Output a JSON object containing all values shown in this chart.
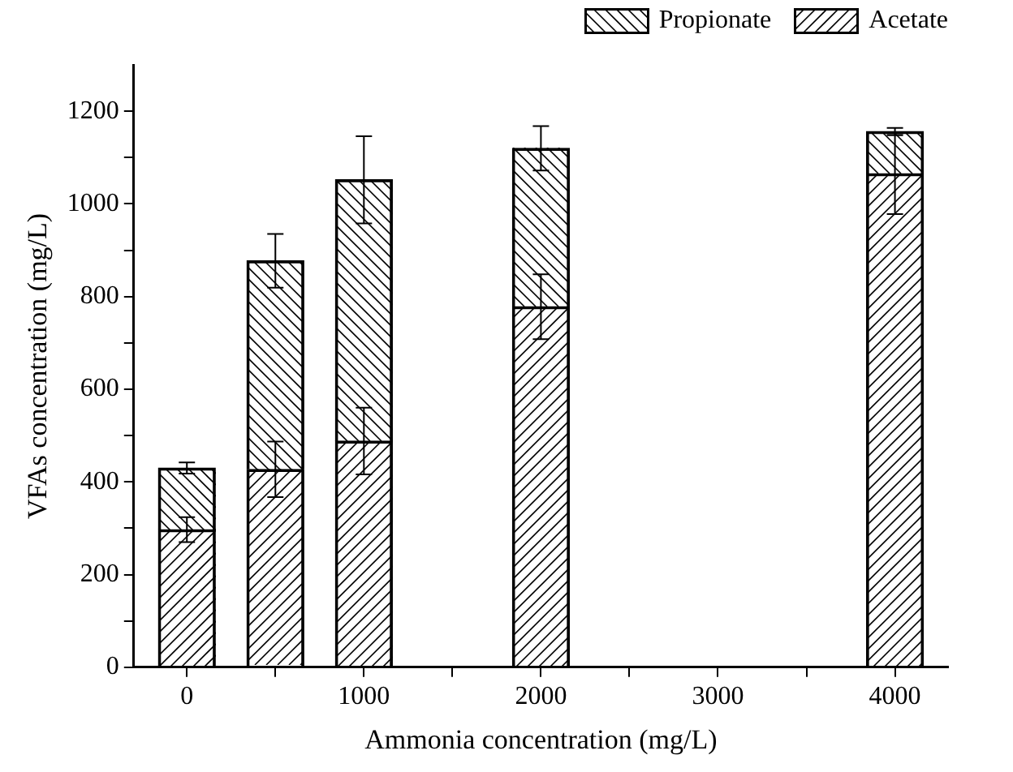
{
  "chart_data": {
    "type": "bar",
    "stacked": true,
    "xlabel": "Ammonia concentration (mg/L)",
    "ylabel": "VFAs concentration (mg/L)",
    "x": [
      0,
      500,
      1000,
      2000,
      4000
    ],
    "series": [
      {
        "name": "Acetate",
        "color": "#000000",
        "values": [
          297,
          427,
          488,
          778,
          1065
        ],
        "errors": [
          27,
          60,
          72,
          70,
          87
        ]
      },
      {
        "name": "Propionate",
        "color": "#000000",
        "values": [
          133,
          450,
          564,
          342,
          91
        ],
        "errors": [
          12,
          58,
          94,
          48,
          8
        ]
      }
    ],
    "xlim": [
      -300,
      4300
    ],
    "xticks": [
      0,
      {
        "value": 500,
        "label": null
      },
      1000,
      {
        "value": 1500,
        "label": null
      },
      2000,
      {
        "value": 2500,
        "label": null
      },
      3000,
      {
        "value": 3500,
        "label": null
      },
      4000
    ],
    "ylim": [
      0,
      1300
    ],
    "yticks": [
      0,
      {
        "value": 100,
        "label": null
      },
      200,
      {
        "value": 300,
        "label": null
      },
      400,
      {
        "value": 500,
        "label": null
      },
      600,
      {
        "value": 700,
        "label": null
      },
      800,
      {
        "value": 900,
        "label": null
      },
      1000,
      {
        "value": 1100,
        "label": null
      },
      1200
    ],
    "grid": false,
    "legend": "top right"
  }
}
